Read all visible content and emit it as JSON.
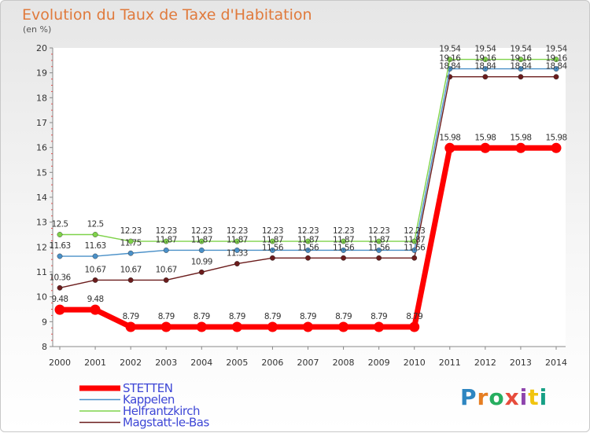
{
  "header": {
    "title": "Evolution du Taux de Taxe d'Habitation",
    "unit": "(en %)"
  },
  "logo": {
    "text": "Proxiti",
    "colors": [
      "#2e86c1",
      "#e67e22",
      "#27ae60",
      "#e74c3c",
      "#8e44ad",
      "#f1c40f",
      "#16a085"
    ]
  },
  "colors": {
    "stetten": "#ff0000",
    "kappelen": "#4a90c8",
    "helfrantzkirch": "#7fd34a",
    "magstatt": "#6b1c1c"
  },
  "chart_data": {
    "type": "line",
    "title": "Evolution du Taux de Taxe d'Habitation",
    "ylabel": "(en %)",
    "xlabel": "",
    "ylim": [
      8,
      20
    ],
    "yticks": [
      8,
      9,
      10,
      11,
      12,
      13,
      14,
      15,
      16,
      17,
      18,
      19,
      20
    ],
    "x": [
      2000,
      2001,
      2002,
      2003,
      2004,
      2005,
      2006,
      2007,
      2008,
      2009,
      2010,
      2011,
      2012,
      2013,
      2014
    ],
    "series": [
      {
        "name": "Magstatt-le-Bas",
        "values": [
          10.36,
          10.67,
          10.67,
          10.67,
          10.99,
          11.33,
          11.56,
          11.56,
          11.56,
          11.56,
          11.56,
          18.84,
          18.84,
          18.84,
          18.84
        ]
      },
      {
        "name": "Kappelen",
        "values": [
          11.63,
          11.63,
          11.75,
          11.87,
          11.87,
          11.87,
          11.87,
          11.87,
          11.87,
          11.87,
          11.87,
          19.16,
          19.16,
          19.16,
          19.16
        ]
      },
      {
        "name": "Helfrantzkirch",
        "values": [
          12.5,
          12.5,
          12.23,
          12.23,
          12.23,
          12.23,
          12.23,
          12.23,
          12.23,
          12.23,
          12.23,
          19.54,
          19.54,
          19.54,
          19.54
        ]
      },
      {
        "name": "STETTEN",
        "values": [
          9.48,
          9.48,
          8.79,
          8.79,
          8.79,
          8.79,
          8.79,
          8.79,
          8.79,
          8.79,
          8.79,
          15.98,
          15.98,
          15.98,
          15.98
        ]
      }
    ],
    "legend": [
      "STETTEN",
      "Kappelen",
      "Helfrantzkirch",
      "Magstatt-le-Bas"
    ],
    "legend_position": "bottom-left",
    "grid": false
  }
}
